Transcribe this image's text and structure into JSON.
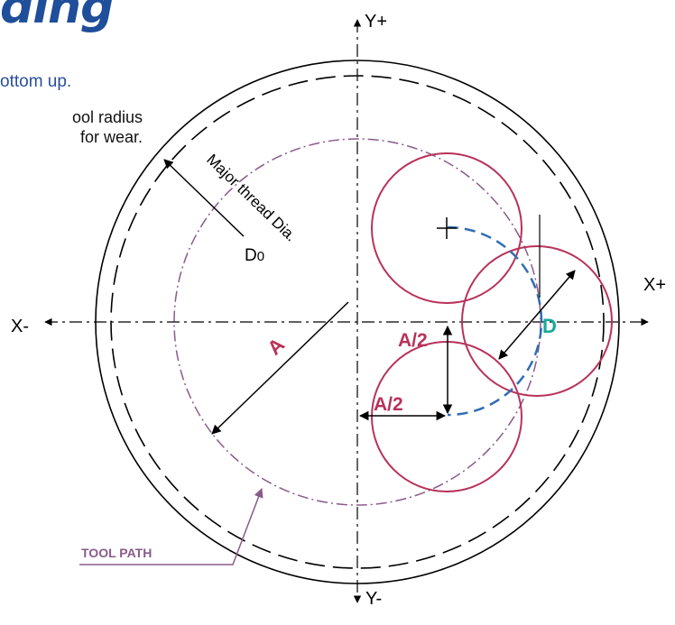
{
  "heading": "ding",
  "subheading": "ottom up.",
  "note": {
    "line1": "ool radius",
    "line2": "for wear."
  },
  "axes": {
    "y_pos": "Y+",
    "y_neg": "Y-",
    "x_pos": "X+",
    "x_neg": "X-"
  },
  "labels": {
    "major_dia": "Major thread Dia.",
    "d0_main": "D",
    "d0_sub": "0",
    "a": "A",
    "a_half_vertical": "A/2",
    "a_half_horizontal": "A/2",
    "d": "D",
    "tool_path": "TOOL PATH"
  },
  "colors": {
    "brand_blue": "#1f4e9a",
    "tool_red": "#b8325a",
    "path_purple": "#8a5a8a",
    "arc_blue": "#2f6db3",
    "d_teal": "#1aa89a"
  }
}
